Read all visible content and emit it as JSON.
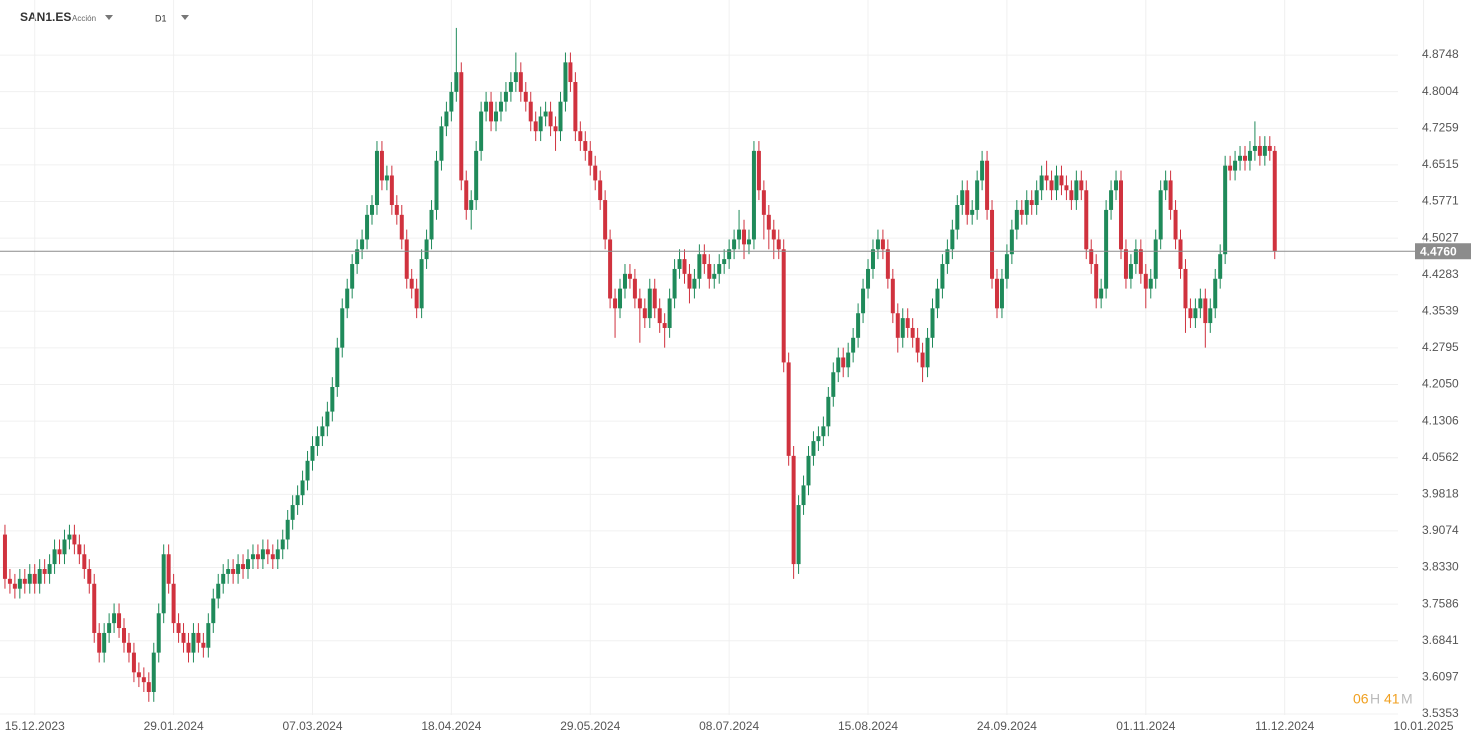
{
  "header": {
    "symbol": "SAN1.ES",
    "asset_type": "Acción",
    "timeframe": "D1"
  },
  "countdown": {
    "hours": "06",
    "hours_unit": "H",
    "minutes": "41",
    "minutes_unit": "M"
  },
  "chart_data": {
    "type": "candlestick",
    "up_color": "#1f8a5a",
    "down_color": "#d0323e",
    "grid": true,
    "xlim": [
      -1,
      290
    ],
    "xticks": [
      {
        "value": 6,
        "label": "15.12.2023"
      },
      {
        "value": 34,
        "label": "29.01.2024"
      },
      {
        "value": 62,
        "label": "07.03.2024"
      },
      {
        "value": 90,
        "label": "18.04.2024"
      },
      {
        "value": 118,
        "label": "29.05.2024"
      },
      {
        "value": 146,
        "label": "08.07.2024"
      },
      {
        "value": 174,
        "label": "15.08.2024"
      },
      {
        "value": 202,
        "label": "24.09.2024"
      },
      {
        "value": 230,
        "label": "01.11.2024"
      },
      {
        "value": 258,
        "label": "11.12.2024"
      },
      {
        "value": 286,
        "label": "10.01.2025"
      }
    ],
    "ylim": [
      3.52,
      4.94
    ],
    "yticks": [
      3.5353,
      3.6097,
      3.6841,
      3.7586,
      {
        "value": 3.833,
        "label": "3.8330"
      },
      3.9074,
      3.9818,
      4.0562,
      4.1306,
      {
        "value": 4.205,
        "label": "4.2050"
      },
      4.2795,
      4.3539,
      4.4283,
      4.5027,
      4.5771,
      4.6515,
      4.7259,
      4.8004,
      4.8748
    ],
    "last_price": {
      "value": 4.476,
      "label": "4.4760"
    },
    "close": [
      3.81,
      3.8,
      3.79,
      3.81,
      3.8,
      3.82,
      3.8,
      3.83,
      3.82,
      3.84,
      3.87,
      3.86,
      3.89,
      3.9,
      3.88,
      3.86,
      3.83,
      3.8,
      3.7,
      3.66,
      3.7,
      3.72,
      3.74,
      3.71,
      3.68,
      3.66,
      3.62,
      3.61,
      3.6,
      3.58,
      3.66,
      3.74,
      3.86,
      3.8,
      3.72,
      3.7,
      3.68,
      3.66,
      3.7,
      3.68,
      3.67,
      3.72,
      3.77,
      3.8,
      3.82,
      3.83,
      3.82,
      3.84,
      3.83,
      3.85,
      3.86,
      3.85,
      3.87,
      3.86,
      3.85,
      3.87,
      3.89,
      3.93,
      3.96,
      3.98,
      4.01,
      4.05,
      4.08,
      4.1,
      4.12,
      4.15,
      4.2,
      4.28,
      4.36,
      4.4,
      4.45,
      4.48,
      4.5,
      4.55,
      4.57,
      4.68,
      4.62,
      4.63,
      4.57,
      4.55,
      4.5,
      4.42,
      4.4,
      4.36,
      4.46,
      4.5,
      4.56,
      4.66,
      4.73,
      4.76,
      4.8,
      4.84,
      4.62,
      4.56,
      4.58,
      4.68,
      4.76,
      4.78,
      4.74,
      4.76,
      4.78,
      4.8,
      4.82,
      4.84,
      4.8,
      4.78,
      4.74,
      4.72,
      4.75,
      4.76,
      4.73,
      4.72,
      4.78,
      4.86,
      4.82,
      4.72,
      4.7,
      4.68,
      4.65,
      4.62,
      4.58,
      4.5,
      4.38,
      4.36,
      4.4,
      4.43,
      4.42,
      4.38,
      4.36,
      4.34,
      4.4,
      4.36,
      4.33,
      4.32,
      4.38,
      4.44,
      4.46,
      4.43,
      4.4,
      4.42,
      4.47,
      4.45,
      4.42,
      4.43,
      4.45,
      4.46,
      4.48,
      4.5,
      4.52,
      4.49,
      4.5,
      4.68,
      4.6,
      4.55,
      4.52,
      4.5,
      4.48,
      4.25,
      4.06,
      3.84,
      3.96,
      4.0,
      4.06,
      4.09,
      4.1,
      4.12,
      4.18,
      4.23,
      4.26,
      4.24,
      4.27,
      4.3,
      4.35,
      4.4,
      4.44,
      4.48,
      4.5,
      4.48,
      4.42,
      4.35,
      4.3,
      4.34,
      4.32,
      4.3,
      4.27,
      4.24,
      4.3,
      4.36,
      4.4,
      4.45,
      4.48,
      4.52,
      4.57,
      4.6,
      4.55,
      4.56,
      4.62,
      4.66,
      4.56,
      4.42,
      4.36,
      4.42,
      4.47,
      4.52,
      4.56,
      4.55,
      4.58,
      4.57,
      4.6,
      4.63,
      4.62,
      4.6,
      4.63,
      4.61,
      4.6,
      4.58,
      4.62,
      4.6,
      4.48,
      4.45,
      4.38,
      4.4,
      4.56,
      4.6,
      4.62,
      4.48,
      4.42,
      4.45,
      4.48,
      4.43,
      4.4,
      4.42,
      4.5,
      4.6,
      4.62,
      4.56,
      4.5,
      4.44,
      4.36,
      4.34,
      4.36,
      4.38,
      4.33,
      4.36,
      4.42,
      4.47,
      4.65,
      4.64,
      4.66,
      4.67,
      4.66,
      4.68,
      4.69,
      4.67,
      4.69,
      4.68,
      4.476
    ],
    "open": [
      3.9,
      3.81,
      3.8,
      3.79,
      3.81,
      3.8,
      3.82,
      3.8,
      3.83,
      3.82,
      3.84,
      3.87,
      3.86,
      3.89,
      3.9,
      3.88,
      3.86,
      3.83,
      3.8,
      3.7,
      3.66,
      3.7,
      3.72,
      3.74,
      3.71,
      3.68,
      3.66,
      3.62,
      3.61,
      3.6,
      3.58,
      3.66,
      3.74,
      3.86,
      3.8,
      3.72,
      3.7,
      3.68,
      3.66,
      3.7,
      3.68,
      3.67,
      3.72,
      3.77,
      3.8,
      3.82,
      3.83,
      3.82,
      3.84,
      3.83,
      3.85,
      3.86,
      3.85,
      3.87,
      3.86,
      3.85,
      3.87,
      3.89,
      3.93,
      3.96,
      3.98,
      4.01,
      4.05,
      4.08,
      4.1,
      4.12,
      4.15,
      4.2,
      4.28,
      4.36,
      4.4,
      4.45,
      4.48,
      4.5,
      4.55,
      4.57,
      4.68,
      4.62,
      4.63,
      4.57,
      4.55,
      4.5,
      4.42,
      4.4,
      4.36,
      4.46,
      4.5,
      4.56,
      4.66,
      4.73,
      4.76,
      4.8,
      4.84,
      4.62,
      4.56,
      4.58,
      4.68,
      4.76,
      4.78,
      4.74,
      4.76,
      4.78,
      4.8,
      4.82,
      4.84,
      4.8,
      4.78,
      4.74,
      4.72,
      4.75,
      4.76,
      4.73,
      4.72,
      4.78,
      4.86,
      4.82,
      4.72,
      4.7,
      4.68,
      4.65,
      4.62,
      4.58,
      4.5,
      4.38,
      4.36,
      4.4,
      4.43,
      4.42,
      4.38,
      4.36,
      4.34,
      4.4,
      4.36,
      4.33,
      4.32,
      4.38,
      4.44,
      4.46,
      4.43,
      4.4,
      4.42,
      4.47,
      4.45,
      4.42,
      4.43,
      4.45,
      4.46,
      4.48,
      4.5,
      4.52,
      4.49,
      4.5,
      4.68,
      4.6,
      4.55,
      4.52,
      4.5,
      4.48,
      4.25,
      4.06,
      3.84,
      3.96,
      4.0,
      4.06,
      4.09,
      4.1,
      4.12,
      4.18,
      4.23,
      4.26,
      4.24,
      4.27,
      4.3,
      4.35,
      4.4,
      4.44,
      4.48,
      4.5,
      4.48,
      4.42,
      4.35,
      4.3,
      4.34,
      4.32,
      4.3,
      4.27,
      4.24,
      4.3,
      4.36,
      4.4,
      4.45,
      4.48,
      4.52,
      4.57,
      4.6,
      4.55,
      4.56,
      4.62,
      4.66,
      4.56,
      4.42,
      4.36,
      4.42,
      4.47,
      4.52,
      4.56,
      4.55,
      4.58,
      4.57,
      4.6,
      4.63,
      4.62,
      4.6,
      4.63,
      4.61,
      4.6,
      4.58,
      4.62,
      4.6,
      4.48,
      4.45,
      4.38,
      4.4,
      4.56,
      4.6,
      4.62,
      4.48,
      4.42,
      4.45,
      4.48,
      4.43,
      4.4,
      4.42,
      4.5,
      4.6,
      4.62,
      4.56,
      4.5,
      4.44,
      4.36,
      4.34,
      4.36,
      4.38,
      4.33,
      4.36,
      4.42,
      4.47,
      4.65,
      4.64,
      4.66,
      4.67,
      4.66,
      4.68,
      4.69,
      4.67,
      4.69,
      4.68
    ],
    "high": [
      3.92,
      3.83,
      3.82,
      3.83,
      3.83,
      3.84,
      3.84,
      3.85,
      3.85,
      3.86,
      3.89,
      3.89,
      3.91,
      3.92,
      3.92,
      3.9,
      3.88,
      3.85,
      3.82,
      3.72,
      3.72,
      3.74,
      3.76,
      3.76,
      3.73,
      3.7,
      3.68,
      3.64,
      3.63,
      3.62,
      3.68,
      3.76,
      3.88,
      3.88,
      3.82,
      3.74,
      3.72,
      3.7,
      3.72,
      3.72,
      3.7,
      3.74,
      3.79,
      3.82,
      3.84,
      3.85,
      3.85,
      3.86,
      3.86,
      3.87,
      3.88,
      3.88,
      3.89,
      3.89,
      3.88,
      3.89,
      3.91,
      3.95,
      3.98,
      4.0,
      4.03,
      4.07,
      4.1,
      4.12,
      4.14,
      4.17,
      4.22,
      4.3,
      4.38,
      4.42,
      4.47,
      4.5,
      4.52,
      4.57,
      4.59,
      4.7,
      4.7,
      4.65,
      4.65,
      4.59,
      4.57,
      4.52,
      4.44,
      4.42,
      4.48,
      4.52,
      4.58,
      4.68,
      4.75,
      4.78,
      4.82,
      4.93,
      4.86,
      4.64,
      4.6,
      4.7,
      4.78,
      4.8,
      4.8,
      4.78,
      4.8,
      4.82,
      4.84,
      4.88,
      4.86,
      4.82,
      4.8,
      4.76,
      4.77,
      4.78,
      4.78,
      4.75,
      4.8,
      4.88,
      4.88,
      4.84,
      4.74,
      4.72,
      4.7,
      4.67,
      4.64,
      4.6,
      4.52,
      4.4,
      4.42,
      4.45,
      4.45,
      4.44,
      4.4,
      4.38,
      4.42,
      4.42,
      4.38,
      4.35,
      4.4,
      4.46,
      4.48,
      4.48,
      4.45,
      4.44,
      4.49,
      4.49,
      4.47,
      4.45,
      4.47,
      4.48,
      4.5,
      4.52,
      4.56,
      4.54,
      4.52,
      4.7,
      4.7,
      4.62,
      4.57,
      4.54,
      4.52,
      4.5,
      4.27,
      4.08,
      3.98,
      4.02,
      4.08,
      4.11,
      4.12,
      4.14,
      4.2,
      4.25,
      4.28,
      4.28,
      4.29,
      4.32,
      4.37,
      4.42,
      4.46,
      4.5,
      4.52,
      4.52,
      4.5,
      4.44,
      4.37,
      4.36,
      4.36,
      4.34,
      4.32,
      4.29,
      4.32,
      4.38,
      4.42,
      4.47,
      4.5,
      4.54,
      4.59,
      4.62,
      4.62,
      4.58,
      4.64,
      4.68,
      4.68,
      4.58,
      4.44,
      4.44,
      4.49,
      4.54,
      4.58,
      4.58,
      4.6,
      4.6,
      4.62,
      4.65,
      4.66,
      4.64,
      4.65,
      4.65,
      4.63,
      4.62,
      4.64,
      4.64,
      4.62,
      4.5,
      4.47,
      4.42,
      4.58,
      4.62,
      4.64,
      4.64,
      4.5,
      4.47,
      4.5,
      4.5,
      4.45,
      4.44,
      4.52,
      4.62,
      4.64,
      4.64,
      4.58,
      4.52,
      4.46,
      4.38,
      4.38,
      4.4,
      4.4,
      4.38,
      4.44,
      4.49,
      4.67,
      4.67,
      4.68,
      4.69,
      4.69,
      4.7,
      4.74,
      4.71,
      4.71,
      4.71,
      4.69
    ],
    "low": [
      3.79,
      3.78,
      3.77,
      3.77,
      3.78,
      3.78,
      3.78,
      3.78,
      3.8,
      3.8,
      3.82,
      3.84,
      3.84,
      3.87,
      3.86,
      3.84,
      3.81,
      3.78,
      3.68,
      3.64,
      3.64,
      3.68,
      3.7,
      3.69,
      3.66,
      3.64,
      3.6,
      3.59,
      3.58,
      3.56,
      3.56,
      3.64,
      3.72,
      3.78,
      3.7,
      3.68,
      3.66,
      3.64,
      3.64,
      3.66,
      3.65,
      3.65,
      3.7,
      3.75,
      3.78,
      3.8,
      3.8,
      3.8,
      3.81,
      3.81,
      3.83,
      3.83,
      3.83,
      3.84,
      3.83,
      3.83,
      3.85,
      3.87,
      3.91,
      3.94,
      3.96,
      3.99,
      4.03,
      4.06,
      4.08,
      4.1,
      4.13,
      4.18,
      4.26,
      4.34,
      4.38,
      4.43,
      4.46,
      4.48,
      4.53,
      4.55,
      4.6,
      4.6,
      4.55,
      4.53,
      4.48,
      4.4,
      4.38,
      4.34,
      4.34,
      4.44,
      4.48,
      4.54,
      4.64,
      4.71,
      4.74,
      4.78,
      4.6,
      4.54,
      4.52,
      4.56,
      4.66,
      4.74,
      4.72,
      4.72,
      4.74,
      4.76,
      4.78,
      4.8,
      4.78,
      4.76,
      4.72,
      4.7,
      4.7,
      4.73,
      4.71,
      4.68,
      4.7,
      4.76,
      4.8,
      4.7,
      4.68,
      4.66,
      4.63,
      4.6,
      4.56,
      4.48,
      4.36,
      4.3,
      4.34,
      4.38,
      4.4,
      4.36,
      4.29,
      4.32,
      4.32,
      4.34,
      4.31,
      4.28,
      4.3,
      4.36,
      4.42,
      4.41,
      4.37,
      4.38,
      4.4,
      4.43,
      4.4,
      4.4,
      4.41,
      4.43,
      4.44,
      4.46,
      4.48,
      4.46,
      4.47,
      4.48,
      4.58,
      4.5,
      4.48,
      4.46,
      4.46,
      4.23,
      4.04,
      3.81,
      3.82,
      3.94,
      3.98,
      4.04,
      4.07,
      4.08,
      4.1,
      4.16,
      4.21,
      4.22,
      4.22,
      4.25,
      4.28,
      4.33,
      4.38,
      4.42,
      4.46,
      4.46,
      4.4,
      4.33,
      4.27,
      4.28,
      4.3,
      4.28,
      4.25,
      4.21,
      4.22,
      4.28,
      4.34,
      4.38,
      4.43,
      4.46,
      4.5,
      4.55,
      4.53,
      4.53,
      4.54,
      4.6,
      4.54,
      4.4,
      4.34,
      4.34,
      4.4,
      4.45,
      4.5,
      4.53,
      4.53,
      4.55,
      4.55,
      4.58,
      4.6,
      4.58,
      4.58,
      4.59,
      4.58,
      4.56,
      4.56,
      4.58,
      4.46,
      4.43,
      4.36,
      4.36,
      4.38,
      4.54,
      4.58,
      4.46,
      4.4,
      4.4,
      4.43,
      4.41,
      4.36,
      4.38,
      4.4,
      4.48,
      4.58,
      4.54,
      4.48,
      4.42,
      4.31,
      4.32,
      4.32,
      4.34,
      4.28,
      4.31,
      4.34,
      4.4,
      4.45,
      4.62,
      4.62,
      4.64,
      4.64,
      4.64,
      4.66,
      4.65,
      4.65,
      4.66,
      4.46
    ]
  }
}
